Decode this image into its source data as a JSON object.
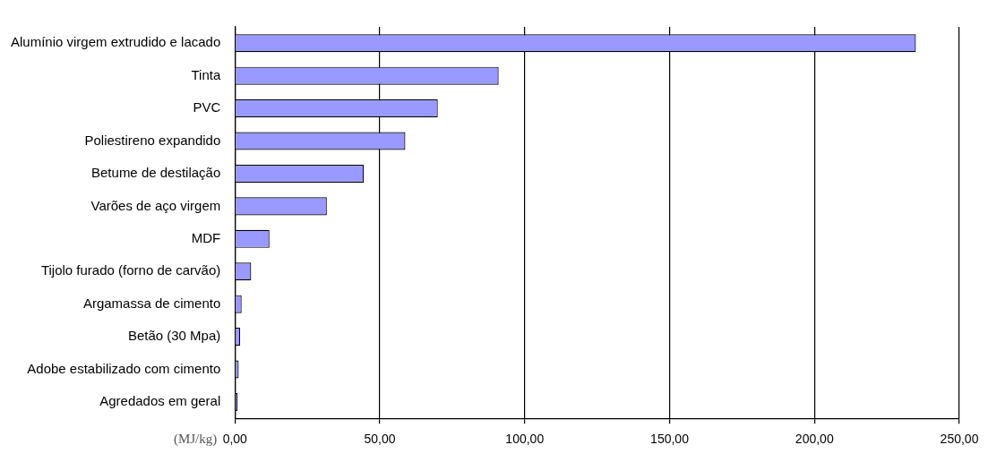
{
  "chart_data": {
    "type": "bar",
    "orientation": "horizontal",
    "xlabel": "(MJ/kg)",
    "categories": [
      "Alumínio virgem extrudido e lacado",
      "Tinta",
      "PVC",
      "Poliestireno expandido",
      "Betume de destilação",
      "Varões de aço virgem",
      "MDF",
      "Tijolo furado (forno de carvão)",
      "Argamassa de cimento",
      "Betão (30 Mpa)",
      "Adobe estabilizado com cimento",
      "Agredados em geral"
    ],
    "values": [
      235,
      91,
      70,
      58.8,
      44.5,
      31.7,
      11.9,
      5.6,
      2.3,
      1.8,
      1.3,
      0.9
    ],
    "color": "#9999ff",
    "xlim": [
      0,
      250
    ],
    "xticks": [
      {
        "value": 0,
        "label": "0,00"
      },
      {
        "value": 50,
        "label": "50,00"
      },
      {
        "value": 100,
        "label": "100,00"
      },
      {
        "value": 150,
        "label": "150,00"
      },
      {
        "value": 200,
        "label": "200,00"
      },
      {
        "value": 250,
        "label": "250,00"
      }
    ],
    "grid": "x",
    "legend": false
  }
}
